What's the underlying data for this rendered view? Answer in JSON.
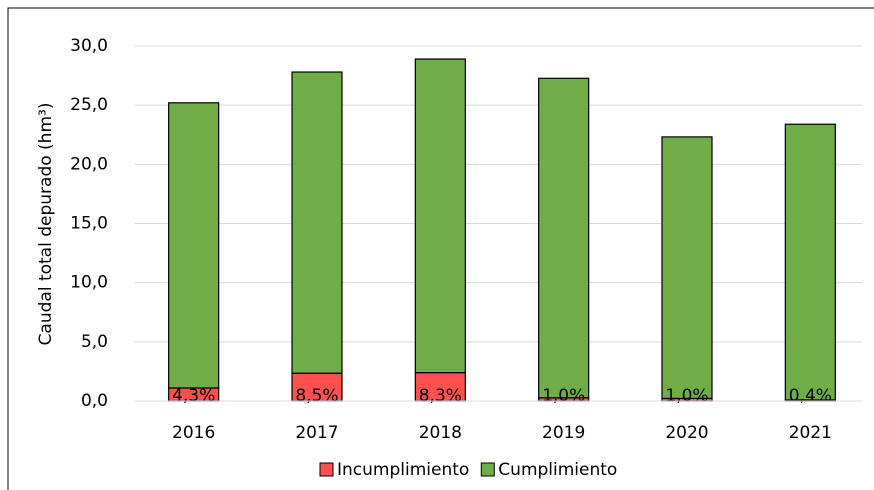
{
  "chart_data": {
    "type": "stacked_bar",
    "y_axis_label": "Caudal total depurado (hm³)",
    "categories": [
      "2016",
      "2017",
      "2018",
      "2019",
      "2020",
      "2021"
    ],
    "series": [
      {
        "name": "Incumplimiento",
        "color": "#ff5050",
        "values": [
          1.1,
          2.35,
          2.4,
          0.27,
          0.22,
          0.09
        ]
      },
      {
        "name": "Cumplimiento",
        "color": "#70ad47",
        "values": [
          24.1,
          25.45,
          26.5,
          27.0,
          22.1,
          23.3
        ]
      }
    ],
    "annotations": [
      "4,3%",
      "8,5%",
      "8,3%",
      "1,0%",
      "1,0%",
      "0,4%"
    ],
    "ylim": [
      0,
      30
    ],
    "yticks": [
      {
        "value": 0,
        "label": "0,0"
      },
      {
        "value": 5,
        "label": "5,0"
      },
      {
        "value": 10,
        "label": "10,0"
      },
      {
        "value": 15,
        "label": "15,0"
      },
      {
        "value": 20,
        "label": "20,0"
      },
      {
        "value": 25,
        "label": "25,0"
      },
      {
        "value": 30,
        "label": "30,0"
      }
    ],
    "grid": true,
    "legend": "bottom"
  }
}
